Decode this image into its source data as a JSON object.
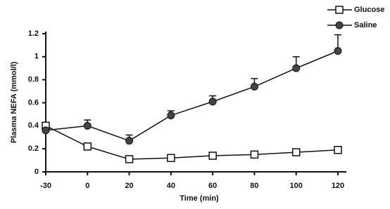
{
  "chart_data": {
    "type": "line",
    "x_label": "Time (min)",
    "y_label": "Plasma NEFA (mmol/l)",
    "categories": [
      "-30",
      "0",
      "20",
      "40",
      "60",
      "80",
      "100",
      "120"
    ],
    "series": [
      {
        "name": "Glucose",
        "color": "#111111",
        "marker": "square",
        "values": [
          0.4,
          0.22,
          0.11,
          0.12,
          0.14,
          0.15,
          0.17,
          0.19
        ]
      },
      {
        "name": "Saline",
        "color": "#111111",
        "marker": "circle",
        "values": [
          0.36,
          0.4,
          0.27,
          0.49,
          0.61,
          0.74,
          0.9,
          1.05
        ],
        "errors": [
          0.02,
          0.05,
          0.05,
          0.04,
          0.05,
          0.07,
          0.1,
          0.14
        ]
      }
    ],
    "ylim": [
      0,
      1.2
    ],
    "yticks": [
      0,
      0.2,
      0.4,
      0.6,
      0.8,
      1,
      1.2
    ],
    "legend": "top-right"
  }
}
